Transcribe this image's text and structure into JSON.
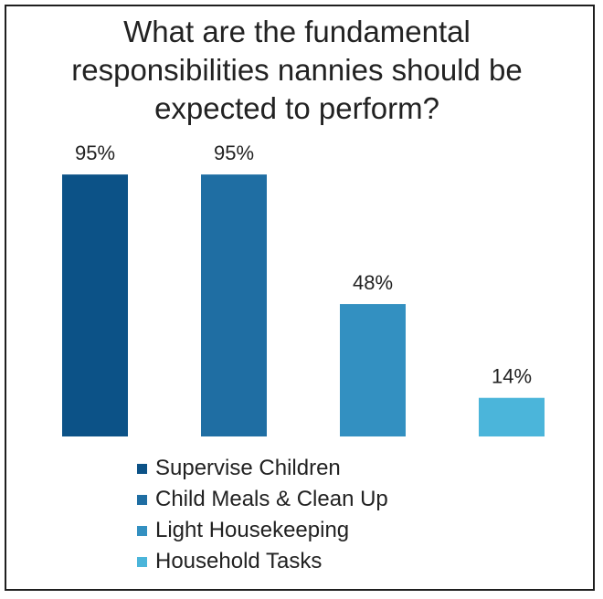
{
  "chart_data": {
    "type": "bar",
    "title_lines": [
      "What are the fundamental",
      "responsibilities  nannies should be",
      "expected to perform?"
    ],
    "categories": [
      "Supervise Children",
      "Child Meals & Clean Up",
      "Light Housekeeping",
      "Household Tasks"
    ],
    "values": [
      95,
      95,
      48,
      14
    ],
    "data_labels": [
      "95%",
      "95%",
      "48%",
      "14%"
    ],
    "colors": [
      "#0c5287",
      "#1f6ea3",
      "#3390c1",
      "#4bb5da"
    ],
    "ylim": [
      0,
      100
    ],
    "xlabel": "",
    "ylabel": "",
    "grid": false,
    "legend_position": "bottom"
  }
}
